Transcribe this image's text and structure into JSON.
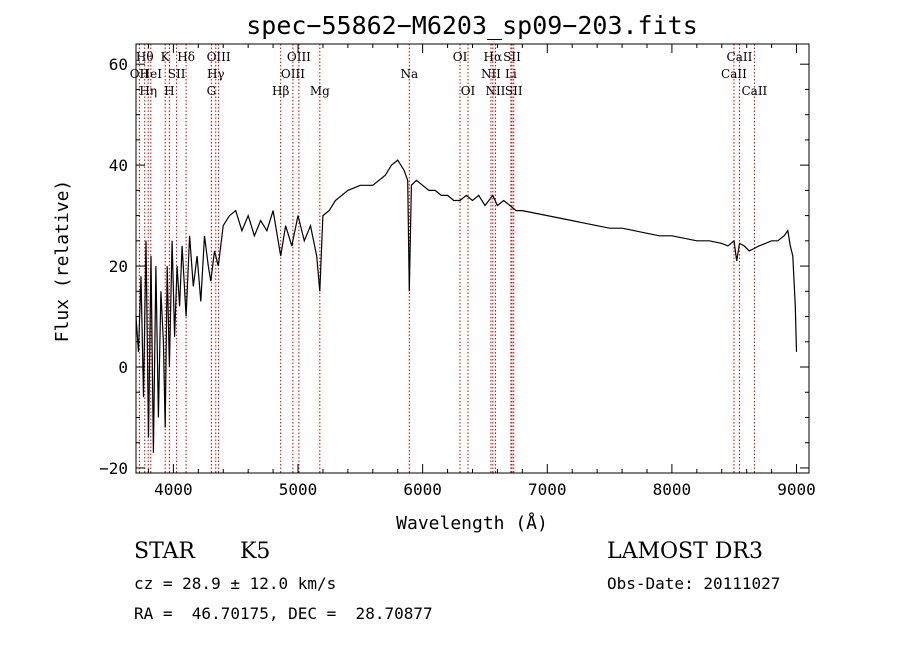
{
  "chart_data": {
    "type": "line",
    "title": "spec−55862−M6203_sp09−203.fits",
    "xlabel": "Wavelength (Å)",
    "ylabel": "Flux (relative)",
    "xlim": [
      3700,
      9100
    ],
    "ylim": [
      -21,
      64
    ],
    "x_ticks": [
      4000,
      5000,
      6000,
      7000,
      8000,
      9000
    ],
    "y_ticks": [
      -20,
      0,
      20,
      40,
      60
    ],
    "y_tick_labels": [
      "−20",
      "0",
      "20",
      "40",
      "60"
    ],
    "series": [
      {
        "name": "spectrum",
        "x": [
          3700,
          3720,
          3740,
          3760,
          3780,
          3800,
          3820,
          3840,
          3860,
          3880,
          3900,
          3920,
          3934,
          3950,
          3968,
          3990,
          4010,
          4030,
          4050,
          4070,
          4102,
          4130,
          4160,
          4190,
          4220,
          4250,
          4280,
          4300,
          4330,
          4360,
          4400,
          4450,
          4500,
          4550,
          4600,
          4650,
          4700,
          4750,
          4800,
          4861,
          4900,
          4950,
          5000,
          5050,
          5100,
          5150,
          5175,
          5200,
          5250,
          5300,
          5400,
          5500,
          5600,
          5700,
          5750,
          5800,
          5850,
          5880,
          5893,
          5910,
          5950,
          6000,
          6050,
          6100,
          6150,
          6200,
          6250,
          6300,
          6350,
          6400,
          6450,
          6500,
          6563,
          6600,
          6650,
          6700,
          6750,
          6800,
          6900,
          7000,
          7100,
          7200,
          7300,
          7400,
          7500,
          7600,
          7700,
          7800,
          7900,
          8000,
          8100,
          8200,
          8300,
          8400,
          8450,
          8498,
          8520,
          8542,
          8580,
          8620,
          8662,
          8700,
          8750,
          8800,
          8850,
          8900,
          8930,
          8950,
          8970,
          8990,
          9000
        ],
        "values": [
          10,
          3,
          18,
          -6,
          25,
          -14,
          22,
          -17,
          20,
          -10,
          15,
          5,
          -12,
          20,
          0,
          25,
          6,
          20,
          12,
          24,
          10,
          26,
          16,
          22,
          13,
          26,
          20,
          17,
          23,
          20,
          28,
          30,
          31,
          27,
          30,
          26,
          29,
          27,
          31,
          22,
          28,
          24,
          30,
          25,
          28,
          22,
          15,
          30,
          31,
          33,
          35,
          36,
          36,
          38,
          40,
          41,
          39,
          37,
          15,
          36,
          37,
          36,
          35,
          35,
          34,
          34,
          33,
          33,
          34,
          33,
          34,
          32,
          34,
          32,
          33,
          32,
          31,
          31,
          30.5,
          30,
          29.5,
          29,
          28.5,
          28,
          27.5,
          27.5,
          27,
          26.5,
          26,
          26,
          25.5,
          25,
          25,
          24.5,
          24,
          25,
          21,
          24.5,
          24,
          23,
          23.5,
          24,
          24.5,
          25,
          25,
          26,
          27,
          24,
          22,
          12,
          3
        ]
      }
    ],
    "lines": [
      {
        "wave": 3727,
        "label": "OII",
        "tier": 2
      },
      {
        "wave": 3770,
        "label": "Hθ",
        "tier": 1
      },
      {
        "wave": 3798,
        "label": "Hη",
        "tier": 3
      },
      {
        "wave": 3819,
        "label": "HeI",
        "tier": 2
      },
      {
        "wave": 3934,
        "label": "K",
        "tier": 1
      },
      {
        "wave": 3968,
        "label": "H",
        "tier": 3
      },
      {
        "wave": 4026,
        "label": "SII",
        "tier": 2
      },
      {
        "wave": 4102,
        "label": "Hδ",
        "tier": 1
      },
      {
        "wave": 4305,
        "label": "G",
        "tier": 3
      },
      {
        "wave": 4340,
        "label": "Hγ",
        "tier": 2
      },
      {
        "wave": 4363,
        "label": "OIII",
        "tier": 1
      },
      {
        "wave": 4861,
        "label": "Hβ",
        "tier": 3
      },
      {
        "wave": 4959,
        "label": "OIII",
        "tier": 2
      },
      {
        "wave": 5007,
        "label": "OIII",
        "tier": 1
      },
      {
        "wave": 5175,
        "label": "Mg",
        "tier": 3
      },
      {
        "wave": 5893,
        "label": "Na",
        "tier": 2
      },
      {
        "wave": 6300,
        "label": "OI",
        "tier": 1
      },
      {
        "wave": 6364,
        "label": "OI",
        "tier": 3
      },
      {
        "wave": 6548,
        "label": "NII",
        "tier": 2
      },
      {
        "wave": 6563,
        "label": "Hα",
        "tier": 1
      },
      {
        "wave": 6584,
        "label": "NII",
        "tier": 3
      },
      {
        "wave": 6708,
        "label": "Li",
        "tier": 2
      },
      {
        "wave": 6717,
        "label": "SII",
        "tier": 1
      },
      {
        "wave": 6731,
        "label": "SII",
        "tier": 3
      },
      {
        "wave": 8498,
        "label": "CaII",
        "tier": 2
      },
      {
        "wave": 8542,
        "label": "CaII",
        "tier": 1
      },
      {
        "wave": 8662,
        "label": "CaII",
        "tier": 3
      }
    ],
    "line_color": "#cc0000",
    "spectrum_color": "#000000"
  },
  "info": {
    "class": "STAR",
    "subclass": "K5",
    "survey": "LAMOST DR3",
    "cz": "cz = 28.9 ± 12.0 km/s",
    "obs_date": "Obs-Date: 20111027",
    "coords": "RA =  46.70175, DEC =  28.70877"
  }
}
